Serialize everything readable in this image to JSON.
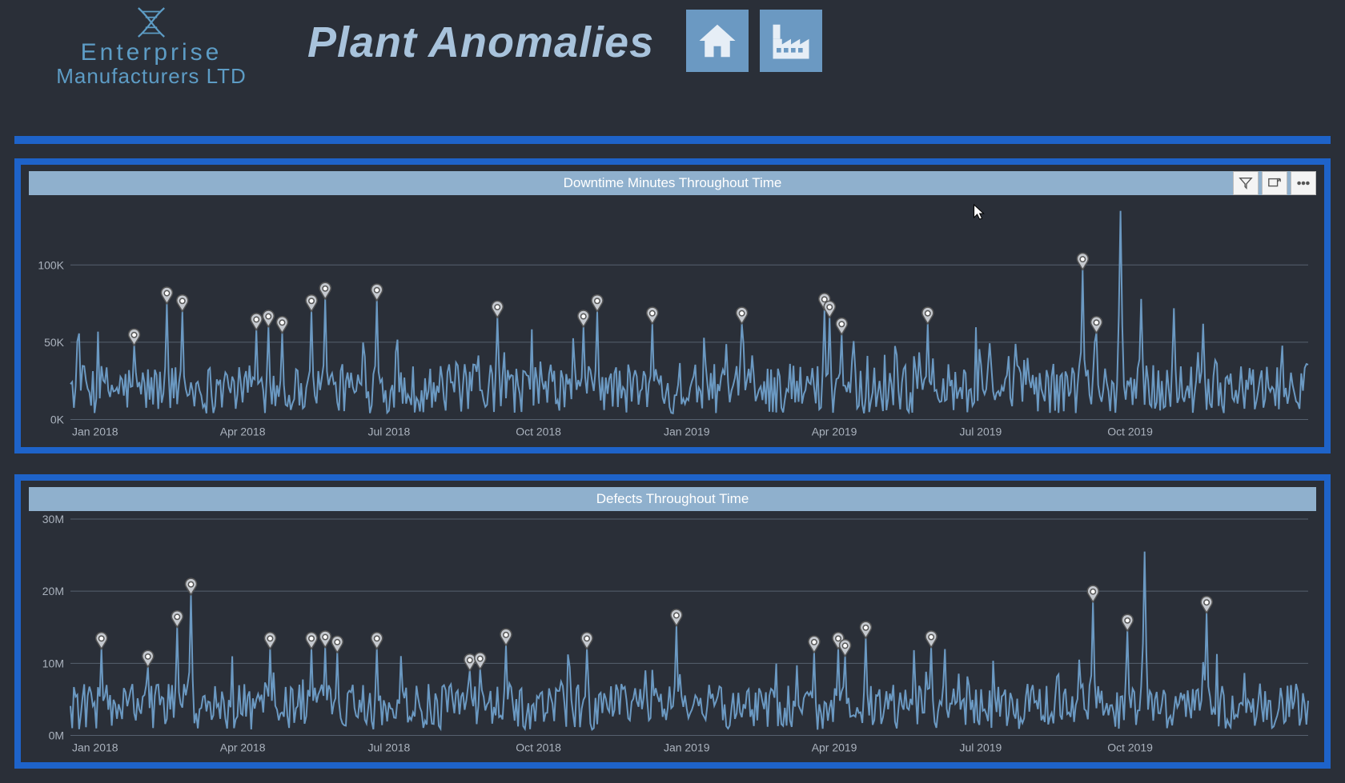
{
  "header": {
    "logo": {
      "line1": "Enterprise",
      "line2": "Manufacturers LTD",
      "accent_color": "#5d9cc5"
    },
    "title": "Plant Anomalies",
    "title_color": "#a8c3dc",
    "nav_icons": [
      "home-icon",
      "factory-icon"
    ],
    "nav_btn_bg": "#6b99c2"
  },
  "divider_color": "#1e63c9",
  "page_bg": "#2a2f38",
  "charts": [
    {
      "id": "downtime",
      "title": "Downtime Minutes Throughout Time",
      "title_bar_bg": "#8fb0cd",
      "title_color": "#ffffff",
      "line_color": "#6b99c2",
      "grid_color": "#56606e",
      "axis_label_color": "#aab2bd",
      "marker_fill": "#c4c8ce",
      "marker_stroke": "#555555",
      "x_labels": [
        "Jan 2018",
        "Apr 2018",
        "Jul 2018",
        "Oct 2018",
        "Jan 2019",
        "Apr 2019",
        "Jul 2019",
        "Oct 2019"
      ],
      "y_ticks": [
        0,
        50000,
        100000
      ],
      "y_tick_labels": [
        "0K",
        "50K",
        "100K"
      ],
      "y_max": 140000,
      "n_points": 720,
      "baseline": 20000,
      "noise_amp": 16000,
      "anomalies": [
        {
          "i": 37,
          "v": 48000
        },
        {
          "i": 56,
          "v": 75000
        },
        {
          "i": 65,
          "v": 70000
        },
        {
          "i": 108,
          "v": 58000
        },
        {
          "i": 115,
          "v": 60000
        },
        {
          "i": 123,
          "v": 56000
        },
        {
          "i": 140,
          "v": 70000
        },
        {
          "i": 148,
          "v": 78000
        },
        {
          "i": 178,
          "v": 77000
        },
        {
          "i": 248,
          "v": 66000
        },
        {
          "i": 298,
          "v": 60000
        },
        {
          "i": 306,
          "v": 70000
        },
        {
          "i": 338,
          "v": 62000
        },
        {
          "i": 390,
          "v": 62000
        },
        {
          "i": 438,
          "v": 71000
        },
        {
          "i": 441,
          "v": 66000
        },
        {
          "i": 448,
          "v": 55000
        },
        {
          "i": 498,
          "v": 62000
        },
        {
          "i": 588,
          "v": 97000
        },
        {
          "i": 596,
          "v": 56000
        }
      ],
      "extra_spikes": [
        {
          "i": 610,
          "v": 135000
        },
        {
          "i": 622,
          "v": 78000
        },
        {
          "i": 641,
          "v": 72000
        },
        {
          "i": 658,
          "v": 62000
        }
      ],
      "has_toolbar": true,
      "cursor_pos_x": 0.73
    },
    {
      "id": "defects",
      "title": "Defects Throughout Time",
      "title_bar_bg": "#8fb0cd",
      "title_color": "#ffffff",
      "line_color": "#6b99c2",
      "grid_color": "#56606e",
      "axis_label_color": "#aab2bd",
      "marker_fill": "#c4c8ce",
      "marker_stroke": "#555555",
      "x_labels": [
        "Jan 2018",
        "Apr 2018",
        "Jul 2018",
        "Oct 2018",
        "Jan 2019",
        "Apr 2019",
        "Jul 2019",
        "Oct 2019"
      ],
      "y_ticks": [
        0,
        10000000,
        20000000,
        30000000
      ],
      "y_tick_labels": [
        "0M",
        "10M",
        "20M",
        "30M"
      ],
      "y_max": 30000000,
      "n_points": 720,
      "baseline": 4000000,
      "noise_amp": 3200000,
      "anomalies": [
        {
          "i": 18,
          "v": 12000000
        },
        {
          "i": 45,
          "v": 9500000
        },
        {
          "i": 62,
          "v": 15000000
        },
        {
          "i": 70,
          "v": 19500000
        },
        {
          "i": 116,
          "v": 12000000
        },
        {
          "i": 140,
          "v": 12000000
        },
        {
          "i": 148,
          "v": 12200000
        },
        {
          "i": 155,
          "v": 11500000
        },
        {
          "i": 178,
          "v": 12000000
        },
        {
          "i": 232,
          "v": 9000000
        },
        {
          "i": 238,
          "v": 9200000
        },
        {
          "i": 253,
          "v": 12500000
        },
        {
          "i": 300,
          "v": 12000000
        },
        {
          "i": 352,
          "v": 15200000
        },
        {
          "i": 432,
          "v": 11500000
        },
        {
          "i": 446,
          "v": 12000000
        },
        {
          "i": 450,
          "v": 11000000
        },
        {
          "i": 462,
          "v": 13500000
        },
        {
          "i": 500,
          "v": 12200000
        },
        {
          "i": 594,
          "v": 18500000
        },
        {
          "i": 614,
          "v": 14500000
        },
        {
          "i": 660,
          "v": 17000000
        }
      ],
      "extra_spikes": [
        {
          "i": 624,
          "v": 25500000
        }
      ],
      "has_toolbar": false
    }
  ]
}
